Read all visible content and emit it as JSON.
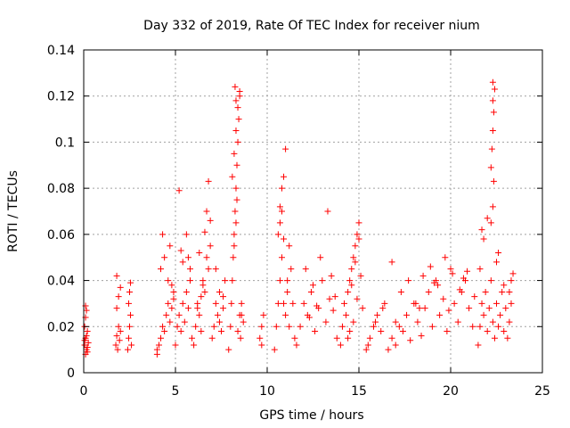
{
  "chart_data": {
    "type": "scatter",
    "title": "Day 332 of 2019, Rate Of TEC Index for receiver nium",
    "xlabel": "GPS time / hours",
    "ylabel": "ROTI / TECUs",
    "xlim": [
      0,
      25
    ],
    "ylim": [
      0,
      0.14
    ],
    "xticks": [
      0,
      5,
      10,
      15,
      20,
      25
    ],
    "xtick_labels": [
      "0",
      "5",
      "10",
      "15",
      "20",
      "25"
    ],
    "yticks": [
      0,
      0.02,
      0.04,
      0.06,
      0.08,
      0.1,
      0.12,
      0.14
    ],
    "ytick_labels": [
      "0",
      "0.02",
      "0.04",
      "0.06",
      "0.08",
      "0.1",
      "0.12",
      "0.14"
    ],
    "grid": true,
    "marker": "plus",
    "color": "#ff0000",
    "series": [
      {
        "x": [
          0.05,
          0.1,
          0.15,
          0.2,
          0.25,
          0.05,
          0.1,
          0.15,
          0.2,
          0.1,
          0.15,
          0.05,
          0.2,
          0.1,
          1.75,
          1.8,
          1.85,
          1.9,
          1.95,
          2.0,
          1.8,
          1.9,
          2.0,
          1.8,
          2.4,
          2.45,
          2.5,
          2.55,
          2.6,
          2.45,
          2.5,
          2.55,
          4.0,
          4.1,
          4.2,
          4.3,
          4.4,
          4.5,
          4.6,
          4.7,
          4.8,
          4.9,
          4.2,
          4.4,
          4.6,
          4.8,
          4.3,
          4.7,
          4.0,
          4.9,
          5.0,
          5.1,
          5.2,
          5.3,
          5.4,
          5.5,
          5.6,
          5.7,
          5.8,
          5.9,
          5.2,
          5.4,
          5.6,
          5.8,
          5.3,
          5.7,
          6.0,
          6.1,
          6.2,
          6.3,
          6.4,
          6.5,
          6.6,
          6.7,
          6.8,
          6.9,
          6.2,
          6.4,
          6.6,
          6.8,
          6.3,
          6.7,
          6.9,
          6.5,
          7.0,
          7.1,
          7.2,
          7.3,
          7.4,
          7.5,
          7.6,
          7.7,
          7.2,
          7.4,
          7.6,
          7.9,
          8.0,
          8.05,
          8.1,
          8.15,
          8.2,
          8.25,
          8.3,
          8.35,
          8.4,
          8.45,
          8.5,
          8.55,
          8.6,
          8.1,
          8.2,
          8.3,
          8.4,
          8.5,
          8.2,
          8.3,
          8.35,
          8.25,
          8.3,
          8.4,
          8.5,
          8.6,
          8.7,
          9.6,
          9.7,
          9.8,
          9.7,
          10.4,
          10.5,
          10.6,
          10.7,
          10.8,
          10.9,
          11.0,
          11.1,
          11.2,
          11.3,
          11.4,
          11.5,
          10.6,
          10.7,
          10.8,
          10.9,
          11.0,
          11.2,
          10.7,
          10.8,
          10.9,
          11.1,
          11.6,
          11.8,
          12.0,
          12.2,
          12.4,
          12.6,
          12.8,
          13.0,
          13.2,
          13.4,
          13.6,
          13.8,
          12.1,
          12.5,
          12.9,
          13.3,
          13.5,
          13.7,
          12.3,
          12.7,
          14.0,
          14.1,
          14.2,
          14.3,
          14.4,
          14.5,
          14.6,
          14.7,
          14.8,
          14.9,
          15.0,
          15.1,
          15.2,
          14.5,
          14.6,
          14.7,
          14.8,
          14.9,
          15.0,
          14.4,
          15.4,
          15.6,
          15.8,
          16.0,
          16.2,
          16.4,
          15.5,
          15.9,
          16.3,
          16.6,
          16.8,
          17.0,
          17.2,
          17.4,
          17.6,
          17.8,
          18.0,
          18.2,
          18.4,
          18.6,
          18.8,
          19.0,
          19.2,
          19.4,
          19.6,
          19.8,
          20.0,
          20.2,
          20.4,
          20.6,
          20.8,
          21.0,
          21.2,
          16.8,
          17.3,
          17.7,
          18.1,
          18.5,
          18.9,
          19.3,
          19.7,
          20.1,
          20.5,
          20.9,
          21.3,
          17.0,
          18.3,
          19.1,
          19.9,
          20.7,
          21.5,
          21.6,
          21.7,
          21.8,
          21.9,
          22.0,
          22.1,
          22.2,
          22.3,
          22.4,
          22.5,
          22.6,
          22.7,
          22.8,
          22.9,
          23.0,
          23.1,
          23.2,
          23.3,
          23.4,
          21.8,
          22.0,
          22.2,
          22.3,
          22.25,
          22.35,
          22.3,
          22.4,
          22.3,
          22.35,
          22.3,
          22.2,
          22.5,
          22.6,
          21.6,
          21.7,
          22.9,
          23.2,
          23.3
        ],
        "y": [
          0.012,
          0.015,
          0.01,
          0.018,
          0.013,
          0.02,
          0.024,
          0.016,
          0.009,
          0.029,
          0.027,
          0.014,
          0.011,
          0.008,
          0.012,
          0.016,
          0.01,
          0.02,
          0.014,
          0.018,
          0.028,
          0.033,
          0.037,
          0.042,
          0.01,
          0.015,
          0.02,
          0.025,
          0.012,
          0.03,
          0.035,
          0.039,
          0.01,
          0.012,
          0.015,
          0.02,
          0.018,
          0.025,
          0.03,
          0.022,
          0.028,
          0.035,
          0.045,
          0.05,
          0.04,
          0.038,
          0.06,
          0.055,
          0.008,
          0.032,
          0.012,
          0.02,
          0.025,
          0.018,
          0.03,
          0.022,
          0.035,
          0.028,
          0.04,
          0.015,
          0.079,
          0.048,
          0.06,
          0.045,
          0.053,
          0.05,
          0.012,
          0.02,
          0.03,
          0.025,
          0.018,
          0.04,
          0.035,
          0.05,
          0.045,
          0.055,
          0.028,
          0.033,
          0.061,
          0.083,
          0.052,
          0.07,
          0.066,
          0.038,
          0.015,
          0.02,
          0.03,
          0.025,
          0.035,
          0.018,
          0.028,
          0.04,
          0.045,
          0.022,
          0.033,
          0.01,
          0.02,
          0.03,
          0.04,
          0.05,
          0.06,
          0.07,
          0.08,
          0.09,
          0.1,
          0.11,
          0.12,
          0.015,
          0.025,
          0.085,
          0.095,
          0.105,
          0.115,
          0.122,
          0.055,
          0.065,
          0.075,
          0.124,
          0.118,
          0.018,
          0.025,
          0.03,
          0.022,
          0.015,
          0.02,
          0.025,
          0.012,
          0.01,
          0.02,
          0.03,
          0.04,
          0.05,
          0.03,
          0.025,
          0.035,
          0.02,
          0.045,
          0.03,
          0.015,
          0.06,
          0.072,
          0.08,
          0.085,
          0.097,
          0.055,
          0.065,
          0.07,
          0.058,
          0.04,
          0.012,
          0.02,
          0.03,
          0.025,
          0.035,
          0.018,
          0.028,
          0.04,
          0.022,
          0.032,
          0.027,
          0.015,
          0.045,
          0.038,
          0.05,
          0.07,
          0.042,
          0.033,
          0.024,
          0.029,
          0.012,
          0.02,
          0.03,
          0.025,
          0.035,
          0.04,
          0.045,
          0.05,
          0.055,
          0.06,
          0.065,
          0.042,
          0.028,
          0.018,
          0.038,
          0.022,
          0.048,
          0.032,
          0.058,
          0.015,
          0.01,
          0.015,
          0.02,
          0.025,
          0.018,
          0.03,
          0.012,
          0.022,
          0.028,
          0.01,
          0.015,
          0.012,
          0.02,
          0.018,
          0.025,
          0.014,
          0.03,
          0.022,
          0.016,
          0.028,
          0.035,
          0.02,
          0.04,
          0.025,
          0.032,
          0.018,
          0.045,
          0.03,
          0.022,
          0.035,
          0.04,
          0.028,
          0.02,
          0.048,
          0.035,
          0.04,
          0.03,
          0.042,
          0.046,
          0.038,
          0.05,
          0.043,
          0.036,
          0.044,
          0.033,
          0.022,
          0.028,
          0.039,
          0.027,
          0.041,
          0.012,
          0.02,
          0.03,
          0.025,
          0.035,
          0.018,
          0.028,
          0.04,
          0.022,
          0.015,
          0.03,
          0.02,
          0.025,
          0.035,
          0.018,
          0.028,
          0.015,
          0.022,
          0.03,
          0.043,
          0.058,
          0.067,
          0.089,
          0.126,
          0.097,
          0.113,
          0.118,
          0.123,
          0.105,
          0.083,
          0.072,
          0.065,
          0.048,
          0.052,
          0.045,
          0.062,
          0.038,
          0.035,
          0.04
        ]
      }
    ]
  }
}
